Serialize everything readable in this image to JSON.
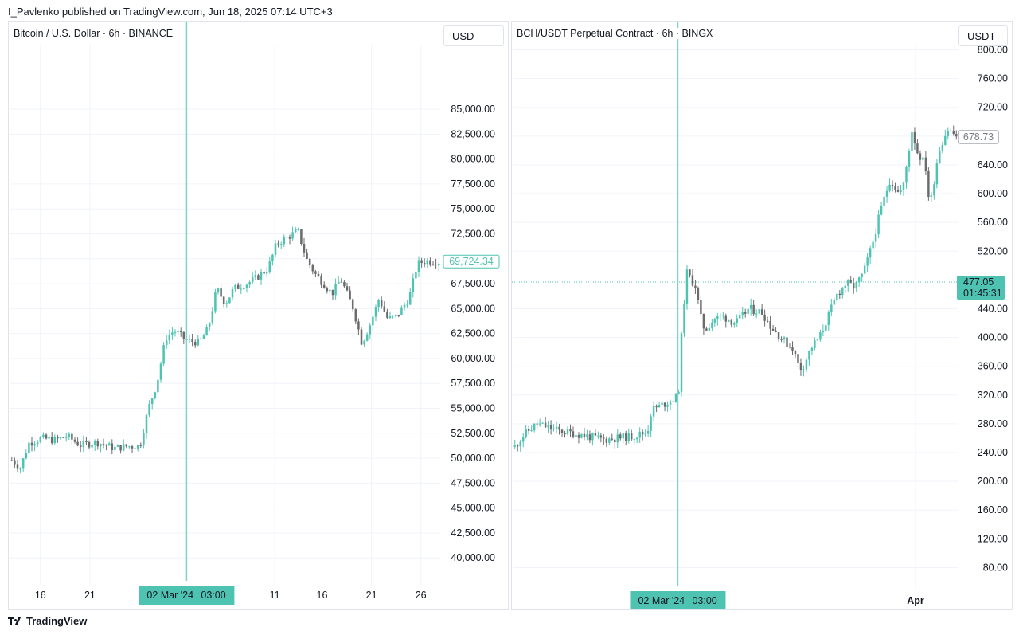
{
  "header": {
    "published": "I_Pavlenko published on TradingView.com, Jun 18, 2025 07:14 UTC+3"
  },
  "footer": {
    "brand": "TradingView"
  },
  "colors": {
    "up": "#4fc3b1",
    "down": "#6b6b6b",
    "vline": "#7fd3c8",
    "grid": "#f0f3fa",
    "label_bg": "#4fc3b1"
  },
  "chart_data": [
    {
      "type": "candlestick",
      "title": "Bitcoin / U.S. Dollar · 6h · BINANCE",
      "currency": "USD",
      "ylim": [
        38500,
        89000
      ],
      "yticks": [
        40000,
        42500,
        45000,
        47500,
        50000,
        52500,
        55000,
        57500,
        60000,
        62500,
        65000,
        67500,
        70000,
        72500,
        75000,
        77500,
        80000,
        82500,
        85000
      ],
      "ytick_labels": [
        "40,000.00",
        "42,500.00",
        "45,000.00",
        "47,500.00",
        "50,000.00",
        "52,500.00",
        "55,000.00",
        "57,500.00",
        "60,000.00",
        "62,500.00",
        "65,000.00",
        "67,500.00",
        "70,000.00",
        "72,500.00",
        "75,000.00",
        "77,500.00",
        "80,000.00",
        "82,500.00",
        "85,000.00"
      ],
      "x_ticks": [
        {
          "label": "16",
          "t": 0.07
        },
        {
          "label": "21",
          "t": 0.185
        },
        {
          "label": "11",
          "t": 0.615
        },
        {
          "label": "16",
          "t": 0.725
        },
        {
          "label": "21",
          "t": 0.84
        },
        {
          "label": "26",
          "t": 0.955
        }
      ],
      "crosshair": {
        "label_date": "02 Mar '24",
        "label_time": "03:00",
        "t": 0.41
      },
      "last_price": {
        "value": 69724.34,
        "label": "69,724.34"
      },
      "anchors": [
        [
          0,
          49800
        ],
        [
          0.02,
          49000
        ],
        [
          0.04,
          51500
        ],
        [
          0.07,
          52000
        ],
        [
          0.1,
          51800
        ],
        [
          0.13,
          52200
        ],
        [
          0.16,
          51300
        ],
        [
          0.2,
          51600
        ],
        [
          0.24,
          51000
        ],
        [
          0.27,
          51200
        ],
        [
          0.3,
          51200
        ],
        [
          0.32,
          55000
        ],
        [
          0.34,
          57500
        ],
        [
          0.36,
          62000
        ],
        [
          0.38,
          62800
        ],
        [
          0.41,
          61800
        ],
        [
          0.44,
          61600
        ],
        [
          0.46,
          63000
        ],
        [
          0.48,
          67000
        ],
        [
          0.5,
          65500
        ],
        [
          0.52,
          67000
        ],
        [
          0.55,
          67500
        ],
        [
          0.57,
          68000
        ],
        [
          0.6,
          69000
        ],
        [
          0.62,
          71500
        ],
        [
          0.64,
          72000
        ],
        [
          0.67,
          72800
        ],
        [
          0.69,
          70000
        ],
        [
          0.71,
          68500
        ],
        [
          0.73,
          67500
        ],
        [
          0.75,
          66500
        ],
        [
          0.77,
          68000
        ],
        [
          0.8,
          65000
        ],
        [
          0.82,
          61500
        ],
        [
          0.84,
          63500
        ],
        [
          0.86,
          66000
        ],
        [
          0.88,
          64000
        ],
        [
          0.9,
          64200
        ],
        [
          0.93,
          66000
        ],
        [
          0.95,
          69500
        ],
        [
          0.97,
          69800
        ],
        [
          1.0,
          69700
        ]
      ]
    },
    {
      "type": "candlestick",
      "title": "BCH/USDT Perpetual Contract · 6h · BINGX",
      "currency": "USDT",
      "ylim": [
        65,
        805
      ],
      "yticks": [
        80,
        120,
        160,
        200,
        240,
        280,
        320,
        360,
        400,
        440,
        480,
        520,
        560,
        600,
        640,
        680,
        720,
        760,
        800
      ],
      "ytick_labels": [
        "80.00",
        "120.00",
        "160.00",
        "200.00",
        "240.00",
        "280.00",
        "320.00",
        "360.00",
        "400.00",
        "440.00",
        "",
        "520.00",
        "560.00",
        "600.00",
        "640.00",
        "",
        "720.00",
        "760.00",
        "800.00"
      ],
      "x_ticks": [
        {
          "label": "Apr",
          "t": 0.905
        }
      ],
      "crosshair": {
        "label_date": "02 Mar '24",
        "label_time": "03:00",
        "t": 0.37
      },
      "last_price": {
        "value": 678.73,
        "label": "678.73"
      },
      "current_price": {
        "value": 477.05,
        "label": "477.05",
        "countdown": "01:45:31"
      },
      "anchors": [
        [
          0,
          248
        ],
        [
          0.02,
          265
        ],
        [
          0.05,
          280
        ],
        [
          0.1,
          270
        ],
        [
          0.15,
          265
        ],
        [
          0.2,
          258
        ],
        [
          0.26,
          262
        ],
        [
          0.3,
          268
        ],
        [
          0.31,
          300
        ],
        [
          0.33,
          305
        ],
        [
          0.36,
          315
        ],
        [
          0.37,
          318
        ],
        [
          0.38,
          430
        ],
        [
          0.39,
          490
        ],
        [
          0.41,
          470
        ],
        [
          0.42,
          430
        ],
        [
          0.43,
          410
        ],
        [
          0.45,
          425
        ],
        [
          0.47,
          430
        ],
        [
          0.5,
          420
        ],
        [
          0.53,
          440
        ],
        [
          0.56,
          435
        ],
        [
          0.58,
          415
        ],
        [
          0.61,
          395
        ],
        [
          0.63,
          385
        ],
        [
          0.64,
          365
        ],
        [
          0.65,
          355
        ],
        [
          0.67,
          385
        ],
        [
          0.69,
          400
        ],
        [
          0.71,
          430
        ],
        [
          0.73,
          460
        ],
        [
          0.75,
          475
        ],
        [
          0.77,
          470
        ],
        [
          0.79,
          490
        ],
        [
          0.81,
          530
        ],
        [
          0.83,
          580
        ],
        [
          0.85,
          620
        ],
        [
          0.87,
          600
        ],
        [
          0.88,
          610
        ],
        [
          0.9,
          690
        ],
        [
          0.91,
          660
        ],
        [
          0.93,
          640
        ],
        [
          0.94,
          580
        ],
        [
          0.96,
          660
        ],
        [
          0.98,
          690
        ],
        [
          1.0,
          680
        ]
      ]
    }
  ]
}
